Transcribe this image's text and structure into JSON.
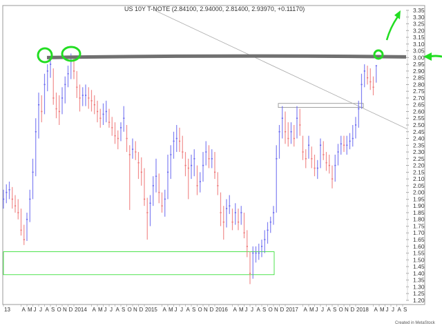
{
  "chart_data": {
    "type": "ohlc",
    "title": "US 10Y T-NOTE (2.84100, 2.94000, 2.81400, 2.93970, +0.11170)",
    "ylim": [
      1.2,
      3.35
    ],
    "y_tick_step": 0.05,
    "y_axis_side": "right",
    "grid": false,
    "up_color": "#6a6af0",
    "down_color": "#ee7878",
    "x_tick_labels": [
      [
        "13",
        "2013-01"
      ],
      [
        "A",
        "2013-04"
      ],
      [
        "M",
        "2013-05"
      ],
      [
        "J",
        "2013-06"
      ],
      [
        "J",
        "2013-07"
      ],
      [
        "A",
        "2013-08"
      ],
      [
        "S",
        "2013-09"
      ],
      [
        "O",
        "2013-10"
      ],
      [
        "N",
        "2013-11"
      ],
      [
        "D",
        "2013-12"
      ],
      [
        "2014",
        "2014-01"
      ],
      [
        "A",
        "2014-04"
      ],
      [
        "M",
        "2014-05"
      ],
      [
        "J",
        "2014-06"
      ],
      [
        "J",
        "2014-07"
      ],
      [
        "A",
        "2014-08"
      ],
      [
        "S",
        "2014-09"
      ],
      [
        "O",
        "2014-10"
      ],
      [
        "N",
        "2014-11"
      ],
      [
        "D",
        "2014-12"
      ],
      [
        "2015",
        "2015-01"
      ],
      [
        "A",
        "2015-04"
      ],
      [
        "M",
        "2015-05"
      ],
      [
        "J",
        "2015-06"
      ],
      [
        "J",
        "2015-07"
      ],
      [
        "A",
        "2015-08"
      ],
      [
        "S",
        "2015-09"
      ],
      [
        "O",
        "2015-10"
      ],
      [
        "N",
        "2015-11"
      ],
      [
        "D",
        "2015-12"
      ],
      [
        "2016",
        "2016-01"
      ],
      [
        "A",
        "2016-04"
      ],
      [
        "M",
        "2016-05"
      ],
      [
        "J",
        "2016-06"
      ],
      [
        "J",
        "2016-07"
      ],
      [
        "A",
        "2016-08"
      ],
      [
        "S",
        "2016-09"
      ],
      [
        "O",
        "2016-10"
      ],
      [
        "N",
        "2016-11"
      ],
      [
        "D",
        "2016-12"
      ],
      [
        "2017",
        "2017-01"
      ],
      [
        "A",
        "2017-04"
      ],
      [
        "M",
        "2017-05"
      ],
      [
        "J",
        "2017-06"
      ],
      [
        "J",
        "2017-07"
      ],
      [
        "A",
        "2017-08"
      ],
      [
        "S",
        "2017-09"
      ],
      [
        "O",
        "2017-10"
      ],
      [
        "N",
        "2017-11"
      ],
      [
        "D",
        "2017-12"
      ],
      [
        "2018",
        "2018-01"
      ],
      [
        "A",
        "2018-04"
      ],
      [
        "M",
        "2018-05"
      ],
      [
        "J",
        "2018-06"
      ],
      [
        "J",
        "2018-07"
      ],
      [
        "A",
        "2018-08"
      ],
      [
        "S",
        "2018-09"
      ]
    ],
    "bars_columns": [
      "date",
      "high",
      "low",
      "close"
    ],
    "bars": [
      [
        "2013-01-01",
        2.02,
        1.88,
        1.95
      ],
      [
        "2013-01-15",
        2.06,
        1.92,
        2.0
      ],
      [
        "2013-02-01",
        2.08,
        1.95,
        2.02
      ],
      [
        "2013-02-15",
        2.04,
        1.88,
        1.95
      ],
      [
        "2013-03-01",
        1.98,
        1.85,
        1.9
      ],
      [
        "2013-03-15",
        1.95,
        1.8,
        1.85
      ],
      [
        "2013-04-01",
        1.88,
        1.68,
        1.72
      ],
      [
        "2013-04-15",
        1.76,
        1.61,
        1.65
      ],
      [
        "2013-05-01",
        1.85,
        1.64,
        1.8
      ],
      [
        "2013-05-15",
        2.02,
        1.78,
        1.95
      ],
      [
        "2013-06-01",
        2.25,
        1.95,
        2.15
      ],
      [
        "2013-06-15",
        2.55,
        2.12,
        2.45
      ],
      [
        "2013-07-01",
        2.74,
        2.4,
        2.65
      ],
      [
        "2013-07-15",
        2.72,
        2.52,
        2.6
      ],
      [
        "2013-08-01",
        2.88,
        2.58,
        2.8
      ],
      [
        "2013-08-15",
        2.95,
        2.75,
        2.9
      ],
      [
        "2013-09-01",
        3.0,
        2.85,
        2.95
      ],
      [
        "2013-09-15",
        2.92,
        2.65,
        2.7
      ],
      [
        "2013-10-01",
        2.74,
        2.55,
        2.62
      ],
      [
        "2013-10-15",
        2.72,
        2.5,
        2.6
      ],
      [
        "2013-11-01",
        2.78,
        2.58,
        2.7
      ],
      [
        "2013-11-15",
        2.86,
        2.66,
        2.8
      ],
      [
        "2013-12-01",
        2.94,
        2.78,
        2.88
      ],
      [
        "2013-12-15",
        3.03,
        2.84,
        2.98
      ],
      [
        "2014-01-01",
        3.01,
        2.84,
        2.9
      ],
      [
        "2014-01-15",
        2.9,
        2.7,
        2.78
      ],
      [
        "2014-02-01",
        2.8,
        2.6,
        2.7
      ],
      [
        "2014-02-15",
        2.78,
        2.64,
        2.72
      ],
      [
        "2014-03-01",
        2.8,
        2.64,
        2.72
      ],
      [
        "2014-03-15",
        2.78,
        2.62,
        2.7
      ],
      [
        "2014-04-01",
        2.76,
        2.6,
        2.68
      ],
      [
        "2014-04-15",
        2.72,
        2.58,
        2.65
      ],
      [
        "2014-05-01",
        2.68,
        2.52,
        2.6
      ],
      [
        "2014-05-15",
        2.62,
        2.48,
        2.55
      ],
      [
        "2014-06-01",
        2.66,
        2.5,
        2.58
      ],
      [
        "2014-06-15",
        2.68,
        2.52,
        2.6
      ],
      [
        "2014-07-01",
        2.62,
        2.48,
        2.52
      ],
      [
        "2014-07-15",
        2.56,
        2.42,
        2.48
      ],
      [
        "2014-08-01",
        2.52,
        2.36,
        2.42
      ],
      [
        "2014-08-15",
        2.46,
        2.32,
        2.4
      ],
      [
        "2014-09-01",
        2.52,
        2.38,
        2.48
      ],
      [
        "2014-09-15",
        2.64,
        2.45,
        2.55
      ],
      [
        "2014-10-01",
        2.5,
        2.3,
        2.4
      ],
      [
        "2014-10-15",
        2.35,
        1.87,
        2.28
      ],
      [
        "2014-11-01",
        2.4,
        2.25,
        2.32
      ],
      [
        "2014-11-15",
        2.38,
        2.24,
        2.3
      ],
      [
        "2014-12-01",
        2.3,
        2.1,
        2.22
      ],
      [
        "2014-12-15",
        2.26,
        2.05,
        2.15
      ],
      [
        "2015-01-01",
        2.18,
        1.9,
        1.95
      ],
      [
        "2015-01-15",
        1.96,
        1.65,
        1.85
      ],
      [
        "2015-02-01",
        1.98,
        1.75,
        1.92
      ],
      [
        "2015-02-15",
        2.12,
        1.9,
        2.05
      ],
      [
        "2015-03-01",
        2.25,
        2.0,
        2.12
      ],
      [
        "2015-03-15",
        2.14,
        1.92,
        2.0
      ],
      [
        "2015-04-01",
        2.0,
        1.85,
        1.9
      ],
      [
        "2015-04-15",
        2.02,
        1.82,
        1.95
      ],
      [
        "2015-05-01",
        2.28,
        1.95,
        2.15
      ],
      [
        "2015-05-15",
        2.35,
        2.1,
        2.28
      ],
      [
        "2015-06-01",
        2.45,
        2.25,
        2.38
      ],
      [
        "2015-06-15",
        2.5,
        2.3,
        2.4
      ],
      [
        "2015-07-01",
        2.48,
        2.3,
        2.38
      ],
      [
        "2015-07-15",
        2.42,
        2.25,
        2.3
      ],
      [
        "2015-08-01",
        2.3,
        2.12,
        2.2
      ],
      [
        "2015-08-15",
        2.25,
        1.95,
        2.18
      ],
      [
        "2015-09-01",
        2.28,
        2.1,
        2.2
      ],
      [
        "2015-09-15",
        2.32,
        2.12,
        2.25
      ],
      [
        "2015-10-01",
        2.2,
        1.98,
        2.05
      ],
      [
        "2015-10-15",
        2.15,
        2.0,
        2.08
      ],
      [
        "2015-11-01",
        2.3,
        2.08,
        2.2
      ],
      [
        "2015-11-15",
        2.38,
        2.2,
        2.3
      ],
      [
        "2015-12-01",
        2.35,
        2.18,
        2.25
      ],
      [
        "2015-12-15",
        2.32,
        2.18,
        2.25
      ],
      [
        "2016-01-01",
        2.3,
        2.1,
        2.15
      ],
      [
        "2016-01-15",
        2.15,
        1.98,
        2.05
      ],
      [
        "2016-02-01",
        2.0,
        1.75,
        1.85
      ],
      [
        "2016-02-15",
        1.9,
        1.65,
        1.78
      ],
      [
        "2016-03-01",
        1.95,
        1.74,
        1.88
      ],
      [
        "2016-03-15",
        1.98,
        1.84,
        1.9
      ],
      [
        "2016-04-01",
        1.88,
        1.72,
        1.78
      ],
      [
        "2016-04-15",
        1.92,
        1.76,
        1.85
      ],
      [
        "2016-05-01",
        1.88,
        1.72,
        1.78
      ],
      [
        "2016-05-15",
        1.9,
        1.76,
        1.85
      ],
      [
        "2016-06-01",
        1.85,
        1.66,
        1.7
      ],
      [
        "2016-06-15",
        1.72,
        1.52,
        1.6
      ],
      [
        "2016-07-01",
        1.56,
        1.32,
        1.4
      ],
      [
        "2016-07-15",
        1.6,
        1.36,
        1.55
      ],
      [
        "2016-08-01",
        1.6,
        1.48,
        1.55
      ],
      [
        "2016-08-15",
        1.62,
        1.5,
        1.55
      ],
      [
        "2016-09-01",
        1.65,
        1.52,
        1.6
      ],
      [
        "2016-09-15",
        1.72,
        1.55,
        1.65
      ],
      [
        "2016-10-01",
        1.78,
        1.62,
        1.72
      ],
      [
        "2016-10-15",
        1.82,
        1.7,
        1.78
      ],
      [
        "2016-11-01",
        1.9,
        1.76,
        1.85
      ],
      [
        "2016-11-15",
        2.35,
        1.85,
        2.25
      ],
      [
        "2016-12-01",
        2.5,
        2.25,
        2.45
      ],
      [
        "2016-12-15",
        2.64,
        2.4,
        2.55
      ],
      [
        "2017-01-01",
        2.6,
        2.36,
        2.45
      ],
      [
        "2017-01-15",
        2.52,
        2.34,
        2.4
      ],
      [
        "2017-02-01",
        2.52,
        2.36,
        2.45
      ],
      [
        "2017-02-15",
        2.5,
        2.34,
        2.4
      ],
      [
        "2017-03-01",
        2.64,
        2.4,
        2.55
      ],
      [
        "2017-03-15",
        2.62,
        2.42,
        2.5
      ],
      [
        "2017-04-01",
        2.42,
        2.24,
        2.3
      ],
      [
        "2017-04-15",
        2.32,
        2.18,
        2.25
      ],
      [
        "2017-05-01",
        2.42,
        2.25,
        2.35
      ],
      [
        "2017-05-15",
        2.34,
        2.18,
        2.25
      ],
      [
        "2017-06-01",
        2.28,
        2.12,
        2.18
      ],
      [
        "2017-06-15",
        2.24,
        2.1,
        2.18
      ],
      [
        "2017-07-01",
        2.4,
        2.18,
        2.35
      ],
      [
        "2017-07-15",
        2.38,
        2.24,
        2.28
      ],
      [
        "2017-08-01",
        2.3,
        2.16,
        2.22
      ],
      [
        "2017-08-15",
        2.28,
        2.14,
        2.2
      ],
      [
        "2017-09-01",
        2.2,
        2.03,
        2.1
      ],
      [
        "2017-09-15",
        2.28,
        2.08,
        2.2
      ],
      [
        "2017-10-01",
        2.36,
        2.2,
        2.3
      ],
      [
        "2017-10-15",
        2.42,
        2.28,
        2.36
      ],
      [
        "2017-11-01",
        2.42,
        2.3,
        2.35
      ],
      [
        "2017-11-15",
        2.42,
        2.28,
        2.35
      ],
      [
        "2017-12-01",
        2.44,
        2.32,
        2.38
      ],
      [
        "2017-12-15",
        2.5,
        2.34,
        2.4
      ],
      [
        "2018-01-01",
        2.56,
        2.4,
        2.5
      ],
      [
        "2018-01-15",
        2.68,
        2.48,
        2.62
      ],
      [
        "2018-02-01",
        2.88,
        2.62,
        2.8
      ],
      [
        "2018-02-15",
        2.95,
        2.78,
        2.9
      ],
      [
        "2018-03-01",
        2.94,
        2.8,
        2.85
      ],
      [
        "2018-03-15",
        2.92,
        2.76,
        2.82
      ],
      [
        "2018-04-01",
        2.86,
        2.72,
        2.78
      ],
      [
        "2018-04-15",
        2.94,
        2.814,
        2.9397
      ]
    ],
    "annotations": {
      "resistance_line_level": 3.0,
      "resistance_line_color": "#707070",
      "highlight_color": "#22dd22",
      "support_box_range": [
        1.39,
        1.56
      ],
      "breakout_box_range": [
        2.63,
        2.66
      ]
    }
  },
  "footer": {
    "credit": "Created in MetaStock"
  }
}
